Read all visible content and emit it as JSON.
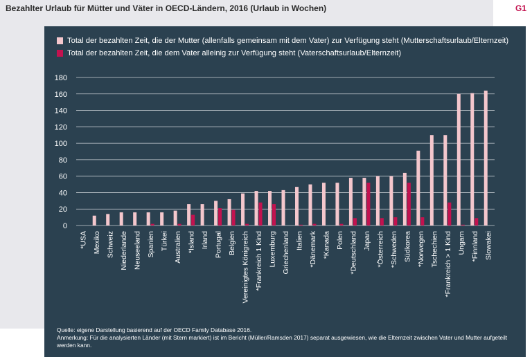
{
  "header": {
    "title": "Bezahlter Urlaub für Mütter und Väter in OECD-Ländern, 2016 (Urlaub in Wochen)",
    "figure_number": "G1"
  },
  "colors": {
    "mother": "#f4c7cd",
    "father": "#c3124f",
    "panel": "#2b4150",
    "grid": "#c8ced3"
  },
  "chart_data": {
    "type": "bar",
    "title": "Bezahlter Urlaub für Mütter und Väter in OECD-Ländern, 2016 (Urlaub in Wochen)",
    "xlabel": "",
    "ylabel": "",
    "ylim": [
      0,
      180
    ],
    "yticks": [
      0,
      20,
      40,
      60,
      80,
      100,
      120,
      140,
      160,
      180
    ],
    "grid": true,
    "legend_position": "top-left",
    "categories": [
      "*USA",
      "Mexiko",
      "Schweiz",
      "Niederlande",
      "Neuseeland",
      "Spanien",
      "Türkei",
      "Australien",
      "*Island",
      "Irland",
      "Portugal",
      "Belgien",
      "Vereinigtes Königreich",
      "*Frankreich 1 Kind",
      "Luxemburg",
      "Griechenland",
      "Italien",
      "*Dänemark",
      "*Kanada",
      "Polen",
      "*Deutschland",
      "Japan",
      "*Österreich",
      "*Schweden",
      "Südkorea",
      "*Norwegen",
      "Tschechien",
      "*Frankreich > 1 Kind",
      "Ungarn",
      "*Finnland",
      "Slowakei"
    ],
    "series": [
      {
        "name": "Total der bezahlten Zeit, die der Mutter (allenfalls gemeinsam mit dem Vater) zur Verfügung steht (Mutterschaftsurlaub/Elternzeit)",
        "values": [
          0,
          12,
          14,
          16,
          16,
          16,
          16,
          18,
          26,
          26,
          30,
          32,
          39,
          42,
          42,
          43,
          47,
          50,
          52,
          52,
          58,
          58,
          60,
          60,
          64,
          91,
          110,
          110,
          160,
          161,
          164
        ]
      },
      {
        "name": "Total der bezahlten Zeit, die dem Vater alleinig zur Verfügung steht (Vaterschaftsurlaub/Elternzeit)",
        "values": [
          0,
          0,
          0,
          0,
          0,
          2,
          0,
          2,
          13,
          0,
          21,
          19,
          2,
          28,
          26,
          0,
          1,
          2,
          0,
          2,
          9,
          52,
          9,
          10,
          52,
          10,
          0,
          28,
          1,
          9,
          0
        ]
      }
    ]
  },
  "notes": {
    "source": "Quelle: eigene Darstellung basierend auf der OECD Family Database 2016.",
    "remark": "Anmerkung: Für die analysierten Länder (mit Stern markiert) ist im Bericht (Müller/Ramsden 2017) separat ausgewiesen, wie die Elternzeit zwischen Vater und Mutter aufgeteilt werden kann."
  }
}
